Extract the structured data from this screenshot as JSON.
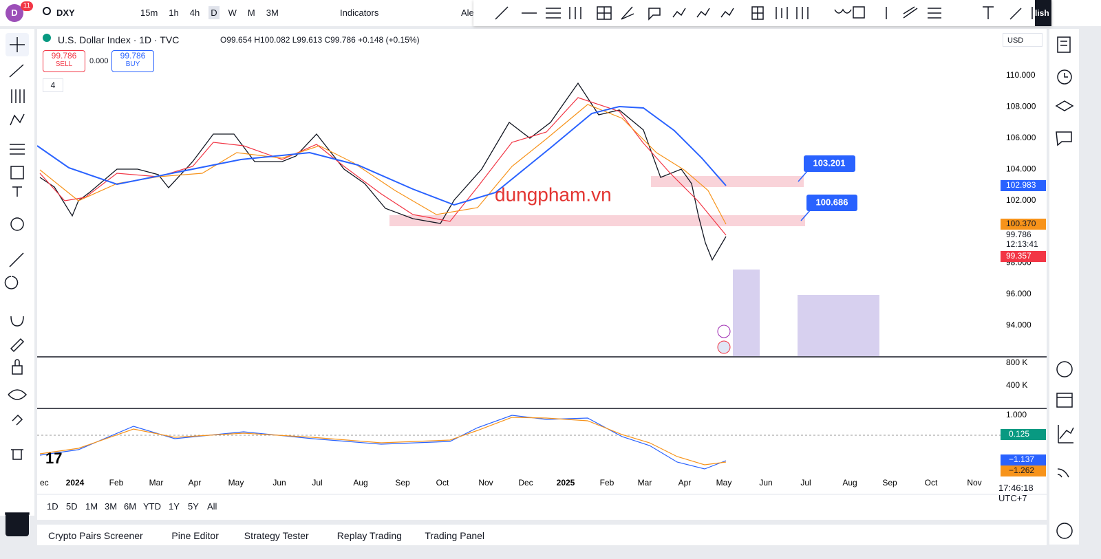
{
  "toolbar": {
    "avatar": "D",
    "badge": "11",
    "symbol": "DXY",
    "intervals": [
      "15m",
      "1h",
      "4h",
      "D",
      "W",
      "M",
      "3M"
    ],
    "indicators": "Indicators",
    "alerts": "Ale",
    "publish": "lish"
  },
  "legend": {
    "title": "U.S. Dollar Index · 1D · TVC",
    "ohlc": "O99.654 H100.082 L99.613 C99.786 +0.148 (+0.15%)",
    "sell_price": "99.786",
    "sell": "SELL",
    "spread": "0.000",
    "buy_price": "99.786",
    "buy": "BUY",
    "collapsed_count": "4"
  },
  "currency": "USD",
  "price_axis": [
    "110.000",
    "108.000",
    "106.000",
    "104.000",
    "102.000",
    "98.000",
    "96.000",
    "94.000"
  ],
  "price_badges": {
    "ma_long": "102.983",
    "ma_mid": "100.370",
    "last": "99.786",
    "countdown": "12:13:41",
    "ma_short": "99.357"
  },
  "callouts": [
    "103.201",
    "100.686"
  ],
  "watermark": "dungpham.vn",
  "volume_axis": [
    "800 K",
    "400 K"
  ],
  "macd_axis": [
    "1.000"
  ],
  "macd_badges": [
    "0.125",
    "−1.137",
    "−1.262"
  ],
  "time_axis": [
    "ec",
    "2024",
    "Feb",
    "Mar",
    "Apr",
    "May",
    "Jun",
    "Jul",
    "Aug",
    "Sep",
    "Oct",
    "Nov",
    "Dec",
    "2025",
    "Feb",
    "Mar",
    "Apr",
    "May",
    "Jun",
    "Jul",
    "Aug",
    "Sep",
    "Oct",
    "Nov"
  ],
  "ranges": [
    "1D",
    "5D",
    "1M",
    "3M",
    "6M",
    "YTD",
    "1Y",
    "5Y",
    "All"
  ],
  "clock": "17:46:18 UTC+7",
  "bottom_tabs": [
    "Crypto Pairs Screener",
    "Pine Editor",
    "Strategy Tester",
    "Replay Trading",
    "Trading Panel"
  ]
}
